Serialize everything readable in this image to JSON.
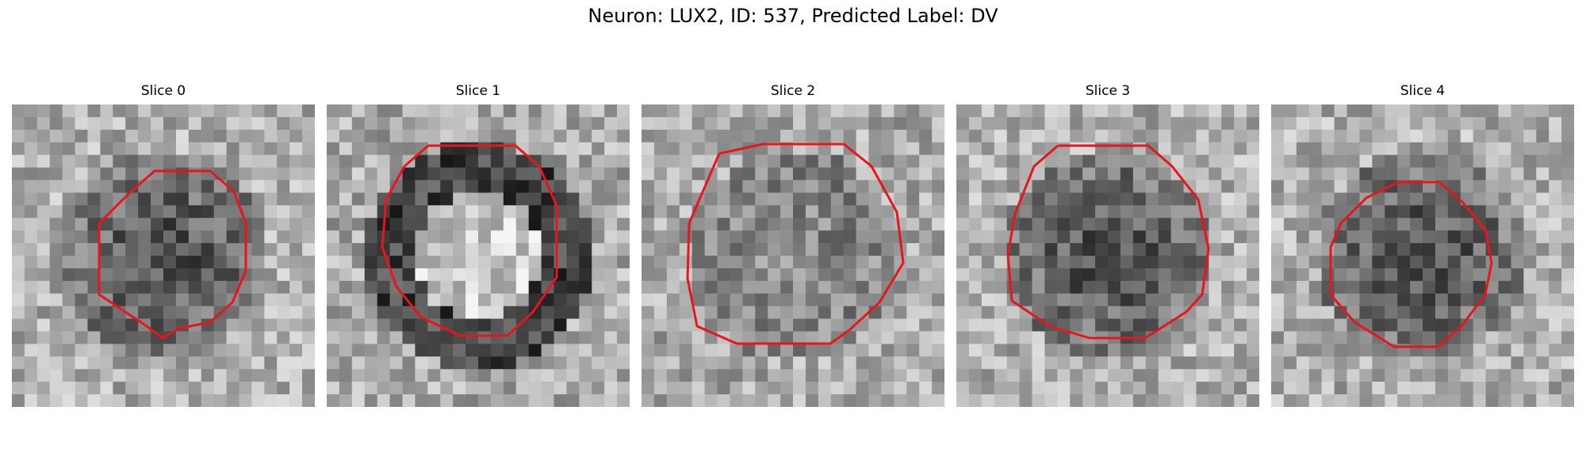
{
  "figure": {
    "title": "Neuron: LUX2, ID: 537, Predicted Label: DV"
  },
  "panels": [
    {
      "title": "Slice 0"
    },
    {
      "title": "Slice 1"
    },
    {
      "title": "Slice 2"
    },
    {
      "title": "Slice 3"
    },
    {
      "title": "Slice 4"
    }
  ],
  "colors": {
    "contour": "#e8151b",
    "background": "#ffffff"
  },
  "colormap": "grayscale"
}
